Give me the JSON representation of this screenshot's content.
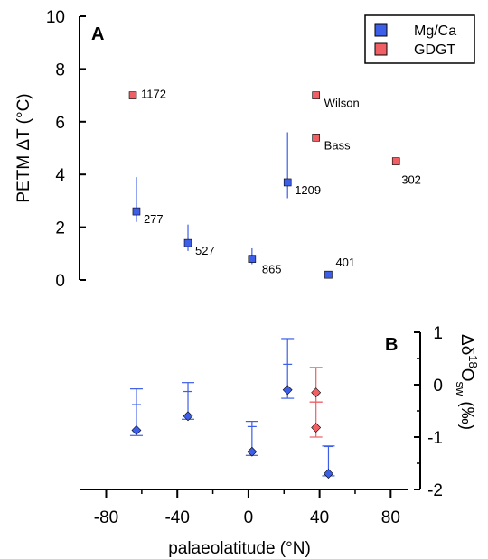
{
  "chart_data": [
    {
      "type": "scatter",
      "panel_label": "A",
      "ylabel": "PETM ΔT (°C)",
      "ylim": [
        0,
        10
      ],
      "yticks": [
        0,
        2,
        4,
        6,
        8,
        10
      ],
      "xlim": [
        -95,
        90
      ],
      "grid": false,
      "legend": {
        "placement": "top-right",
        "entries": [
          {
            "name": "Mg/Ca",
            "color": "#3d5ee8"
          },
          {
            "name": "GDGT",
            "color": "#ef5f64"
          }
        ]
      },
      "series": [
        {
          "name": "Mg/Ca",
          "color": "#3d5ee8",
          "points": [
            {
              "x": -63,
              "y": 2.6,
              "err_low": 2.2,
              "err_high": 3.9,
              "label": "277"
            },
            {
              "x": -34,
              "y": 1.4,
              "err_low": 1.1,
              "err_high": 2.1,
              "label": "527"
            },
            {
              "x": 2,
              "y": 0.8,
              "err_low": 0.6,
              "err_high": 1.2,
              "label": "865"
            },
            {
              "x": 22,
              "y": 3.7,
              "err_low": 3.1,
              "err_high": 5.6,
              "label": "1209"
            },
            {
              "x": 45,
              "y": 0.2,
              "label": "401"
            }
          ]
        },
        {
          "name": "GDGT",
          "color": "#ef5f64",
          "points": [
            {
              "x": -65,
              "y": 7.0,
              "label": "1172"
            },
            {
              "x": 38,
              "y": 7.0,
              "label": "Wilson"
            },
            {
              "x": 38,
              "y": 5.4,
              "label": "Bass"
            },
            {
              "x": 83,
              "y": 4.5,
              "label": "302"
            }
          ]
        }
      ]
    },
    {
      "type": "scatter",
      "panel_label": "B",
      "xlabel": "palaeolatitude (°N)",
      "ylabel_main": "Δδ",
      "ylabel_sup": "18",
      "ylabel_rest": "O",
      "ylabel_sub": "sw",
      "ylabel_unit": "(‰)",
      "ylim": [
        -2,
        1
      ],
      "yticks": [
        1,
        0,
        -1,
        -2
      ],
      "xlim": [
        -95,
        90
      ],
      "xticks": [
        -80,
        -40,
        0,
        40,
        80
      ],
      "grid": false,
      "series": [
        {
          "name": "Mg/Ca",
          "color": "#3d5ee8",
          "points": [
            {
              "x": -63,
              "y": -0.87,
              "err_low": -0.97,
              "err_high": -0.08,
              "mid": -0.38
            },
            {
              "x": -34,
              "y": -0.6,
              "err_low": -0.66,
              "err_high": 0.04,
              "mid": -0.13
            },
            {
              "x": 2,
              "y": -1.28,
              "err_low": -1.35,
              "err_high": -0.7,
              "mid": -0.8
            },
            {
              "x": 22,
              "y": -0.1,
              "err_low": -0.26,
              "err_high": 0.88,
              "mid": 0.39
            },
            {
              "x": 45,
              "y": -1.7,
              "err_low": -1.74,
              "err_high": -1.17,
              "mid": -1.18
            }
          ]
        },
        {
          "name": "GDGT",
          "color": "#ef5f64",
          "points": [
            {
              "x": 38,
              "y": -0.15,
              "err_low": -0.33,
              "err_high": 0.33
            },
            {
              "x": 38,
              "y": -0.82,
              "err_low": -1.0,
              "err_high": -0.33
            }
          ]
        }
      ]
    }
  ]
}
